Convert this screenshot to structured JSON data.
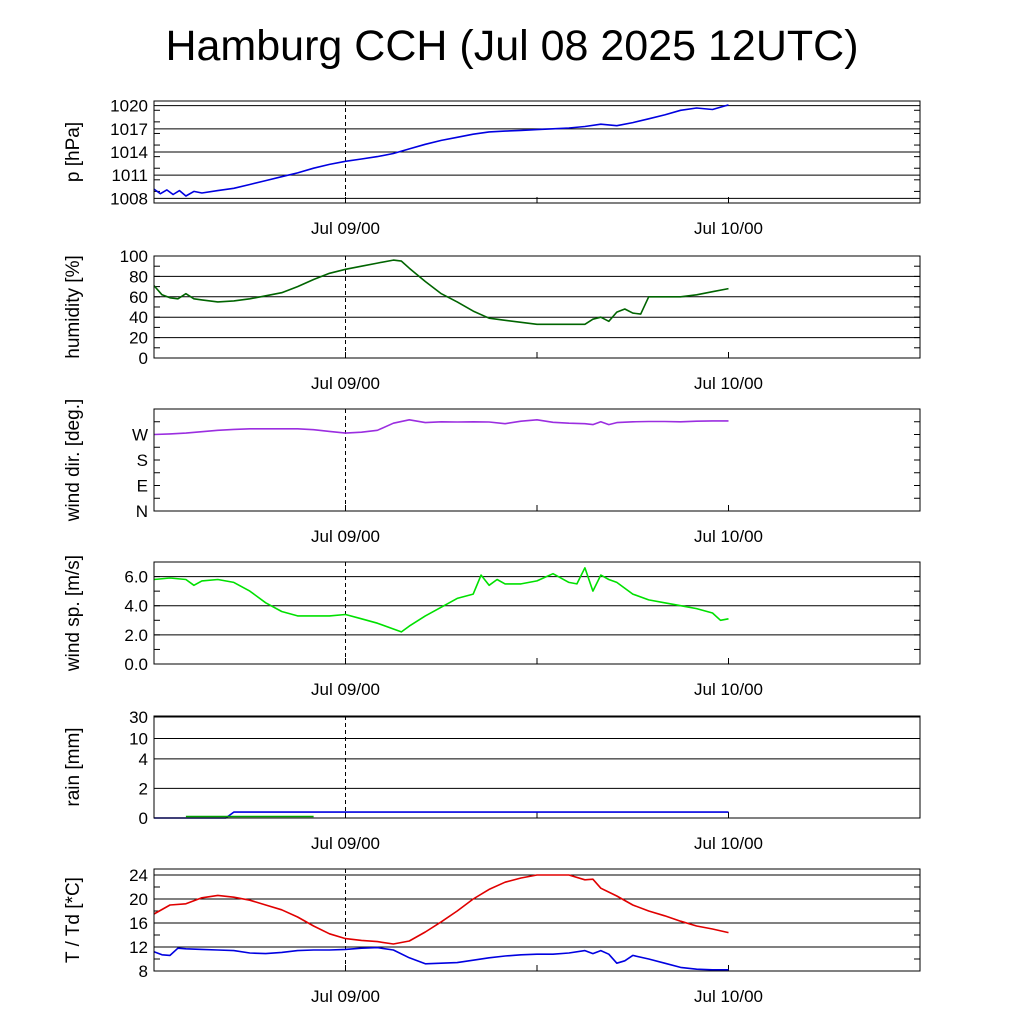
{
  "title": "Hamburg CCH (Jul 08 2025 12UTC)",
  "chart_data": [
    {
      "type": "line",
      "ylabel": "p [hPa]",
      "scale": "linear",
      "ylim": [
        1007.4,
        1020.6
      ],
      "yticks": [
        1008,
        1011,
        1014,
        1017,
        1020
      ],
      "yticklabels": [
        "1008",
        "1011",
        "1014",
        "1017",
        "1020"
      ],
      "grid_y": [
        1008,
        1011,
        1014,
        1017,
        1020
      ],
      "xlim": [
        -12,
        36
      ],
      "xticks": [
        0,
        24
      ],
      "xticklabels": [
        "Jul 09/00",
        "Jul 10/00"
      ],
      "series": [
        {
          "color": "#0000e0",
          "x": [
            -12,
            -11.6,
            -11.2,
            -10.8,
            -10.4,
            -10,
            -9.5,
            -9,
            -8,
            -7,
            -6,
            -5,
            -4,
            -3,
            -2,
            -1,
            0,
            1,
            2,
            3,
            4,
            5,
            6,
            7,
            8,
            9,
            10,
            11,
            12,
            13,
            14,
            15,
            16,
            17,
            18,
            19,
            20,
            21,
            22,
            23,
            24
          ],
          "y": [
            1009.2,
            1008.6,
            1009.1,
            1008.5,
            1009.0,
            1008.3,
            1008.9,
            1008.7,
            1009.0,
            1009.3,
            1009.8,
            1010.3,
            1010.8,
            1011.3,
            1011.9,
            1012.4,
            1012.8,
            1013.1,
            1013.4,
            1013.8,
            1014.4,
            1015.0,
            1015.5,
            1015.9,
            1016.3,
            1016.6,
            1016.7,
            1016.8,
            1016.9,
            1017.0,
            1017.1,
            1017.3,
            1017.6,
            1017.4,
            1017.8,
            1018.3,
            1018.8,
            1019.4,
            1019.7,
            1019.5,
            1020.1
          ]
        }
      ]
    },
    {
      "type": "line",
      "ylabel": "humidity [%]",
      "scale": "linear",
      "ylim": [
        0,
        100
      ],
      "yticks": [
        0,
        20,
        40,
        60,
        80,
        100
      ],
      "yticklabels": [
        "0",
        "20",
        "40",
        "60",
        "80",
        "100"
      ],
      "grid_y": [
        20,
        40,
        60,
        80
      ],
      "xlim": [
        -12,
        36
      ],
      "xticks": [
        0,
        24
      ],
      "xticklabels": [
        "Jul 09/00",
        "Jul 10/00"
      ],
      "series": [
        {
          "color": "#006400",
          "x": [
            -12,
            -11.5,
            -11,
            -10.5,
            -10,
            -9.5,
            -9,
            -8.5,
            -8,
            -7,
            -6,
            -5,
            -4,
            -3,
            -2,
            -1,
            0,
            1,
            2,
            3,
            3.5,
            4,
            5,
            6,
            7,
            8,
            9,
            10,
            11,
            12,
            13,
            14,
            15,
            15.5,
            16,
            16.5,
            17,
            17.5,
            18,
            18.5,
            19,
            20,
            21,
            22,
            23,
            24
          ],
          "y": [
            71,
            62,
            59,
            58,
            63,
            58,
            57,
            56,
            55,
            56,
            58,
            61,
            64,
            70,
            77,
            83,
            87,
            90,
            93,
            96,
            95,
            88,
            75,
            63,
            55,
            46,
            39,
            37,
            35,
            33,
            33,
            33,
            33,
            38,
            40,
            36,
            45,
            48,
            44,
            43,
            60,
            60,
            60,
            62,
            65,
            68
          ]
        }
      ]
    },
    {
      "type": "line",
      "ylabel": "wind dir. [deg.]",
      "scale": "linear",
      "ylim": [
        0,
        360
      ],
      "yticks": [
        0,
        90,
        180,
        270
      ],
      "yticklabels": [
        "N",
        "E",
        "S",
        "W"
      ],
      "grid_y": [],
      "xlim": [
        -12,
        36
      ],
      "xticks": [
        0,
        24
      ],
      "xticklabels": [
        "Jul 09/00",
        "Jul 10/00"
      ],
      "series": [
        {
          "color": "#9b2ee0",
          "x": [
            -12,
            -11,
            -10,
            -9,
            -8,
            -7,
            -6,
            -5,
            -4,
            -3,
            -2,
            -1,
            0,
            1,
            2,
            3,
            4,
            5,
            6,
            7,
            8,
            9,
            10,
            11,
            12,
            13,
            14,
            15,
            15.5,
            16,
            16.5,
            17,
            18,
            19,
            20,
            21,
            22,
            23,
            24
          ],
          "y": [
            270,
            272,
            275,
            280,
            285,
            288,
            290,
            290,
            290,
            290,
            287,
            281,
            275,
            278,
            285,
            310,
            322,
            312,
            315,
            314,
            315,
            314,
            308,
            317,
            322,
            313,
            310,
            308,
            305,
            315,
            305,
            312,
            315,
            316,
            316,
            315,
            317,
            318,
            318
          ]
        }
      ]
    },
    {
      "type": "line",
      "ylabel": "wind sp. [m/s]",
      "scale": "linear",
      "ylim": [
        0,
        7
      ],
      "yticks": [
        0,
        2,
        4,
        6
      ],
      "yticklabels": [
        "0.0",
        "2.0",
        "4.0",
        "6.0"
      ],
      "grid_y": [
        2,
        4,
        6
      ],
      "xlim": [
        -12,
        36
      ],
      "xticks": [
        0,
        24
      ],
      "xticklabels": [
        "Jul 09/00",
        "Jul 10/00"
      ],
      "series": [
        {
          "color": "#00e000",
          "x": [
            -12,
            -11,
            -10,
            -9.5,
            -9,
            -8,
            -7,
            -6,
            -5,
            -4,
            -3,
            -2,
            -1,
            0,
            1,
            2,
            3,
            3.5,
            4,
            5,
            6,
            7,
            8,
            8.5,
            9,
            9.5,
            10,
            11,
            12,
            13,
            14,
            14.5,
            15,
            15.5,
            16,
            16.5,
            17,
            18,
            19,
            20,
            21,
            22,
            23,
            23.5,
            24
          ],
          "y": [
            5.8,
            5.9,
            5.8,
            5.4,
            5.7,
            5.8,
            5.6,
            5.0,
            4.2,
            3.6,
            3.3,
            3.3,
            3.3,
            3.4,
            3.1,
            2.8,
            2.4,
            2.2,
            2.6,
            3.3,
            3.9,
            4.5,
            4.8,
            6.1,
            5.4,
            5.8,
            5.5,
            5.5,
            5.7,
            6.2,
            5.6,
            5.5,
            6.6,
            5.0,
            6.1,
            5.8,
            5.6,
            4.8,
            4.4,
            4.2,
            4.0,
            3.8,
            3.5,
            3.0,
            3.1
          ]
        }
      ]
    },
    {
      "type": "line",
      "ylabel": "rain [mm]",
      "scale": "custom",
      "ylim": [
        0,
        30
      ],
      "yticks": [
        0,
        2,
        4,
        10,
        30
      ],
      "yticklabels": [
        "0",
        "2",
        "4",
        "10",
        "30"
      ],
      "grid_y": [
        2,
        4,
        10,
        30
      ],
      "xlim": [
        -12,
        36
      ],
      "xticks": [
        0,
        24
      ],
      "xticklabels": [
        "Jul 09/00",
        "Jul 10/00"
      ],
      "series": [
        {
          "color": "#0000e0",
          "x": [
            -12,
            -7.5,
            -7,
            24
          ],
          "y": [
            0,
            0,
            0.4,
            0.4
          ]
        },
        {
          "color": "#00a000",
          "x": [
            -10,
            -2
          ],
          "y": [
            0.1,
            0.1
          ]
        }
      ]
    },
    {
      "type": "line",
      "ylabel": "T / Td [*C]",
      "scale": "linear",
      "ylim": [
        8,
        25
      ],
      "yticks": [
        8,
        12,
        16,
        20,
        24
      ],
      "yticklabels": [
        "8",
        "12",
        "16",
        "20",
        "24"
      ],
      "grid_y": [
        12,
        16,
        20,
        24
      ],
      "xlim": [
        -12,
        36
      ],
      "xticks": [
        0,
        24
      ],
      "xticklabels": [
        "Jul 09/00",
        "Jul 10/00"
      ],
      "series": [
        {
          "color": "#e00000",
          "x": [
            -12,
            -11,
            -10,
            -9,
            -8,
            -7,
            -6,
            -5,
            -4,
            -3,
            -2,
            -1,
            0,
            1,
            2,
            3,
            4,
            5,
            6,
            7,
            8,
            9,
            10,
            11,
            12,
            13,
            14,
            15,
            15.5,
            16,
            17,
            18,
            19,
            20,
            21,
            22,
            23,
            24
          ],
          "y": [
            17.5,
            19.0,
            19.2,
            20.2,
            20.6,
            20.3,
            19.8,
            19.0,
            18.2,
            17.0,
            15.5,
            14.2,
            13.4,
            13.1,
            12.9,
            12.5,
            13.0,
            14.5,
            16.2,
            18.0,
            20.0,
            21.6,
            22.8,
            23.5,
            24.0,
            24.0,
            24.0,
            23.2,
            23.3,
            21.8,
            20.5,
            19.0,
            18.0,
            17.2,
            16.3,
            15.5,
            15.0,
            14.4
          ]
        },
        {
          "color": "#0000e0",
          "x": [
            -12,
            -11.5,
            -11,
            -10.5,
            -10,
            -9,
            -8,
            -7,
            -6,
            -5,
            -4,
            -3,
            -2,
            -1,
            0,
            1,
            2,
            3,
            4,
            5,
            6,
            7,
            8,
            9,
            10,
            11,
            12,
            13,
            14,
            15,
            15.5,
            16,
            16.5,
            17,
            17.5,
            18,
            19,
            20,
            21,
            22,
            23,
            24
          ],
          "y": [
            11.2,
            10.7,
            10.6,
            11.8,
            11.7,
            11.6,
            11.5,
            11.4,
            11.0,
            10.9,
            11.1,
            11.4,
            11.5,
            11.5,
            11.6,
            11.8,
            11.9,
            11.5,
            10.2,
            9.2,
            9.3,
            9.4,
            9.8,
            10.2,
            10.5,
            10.7,
            10.8,
            10.8,
            11.0,
            11.4,
            10.9,
            11.4,
            10.8,
            9.3,
            9.7,
            10.6,
            10.0,
            9.3,
            8.6,
            8.3,
            8.2,
            8.2
          ]
        }
      ]
    }
  ]
}
